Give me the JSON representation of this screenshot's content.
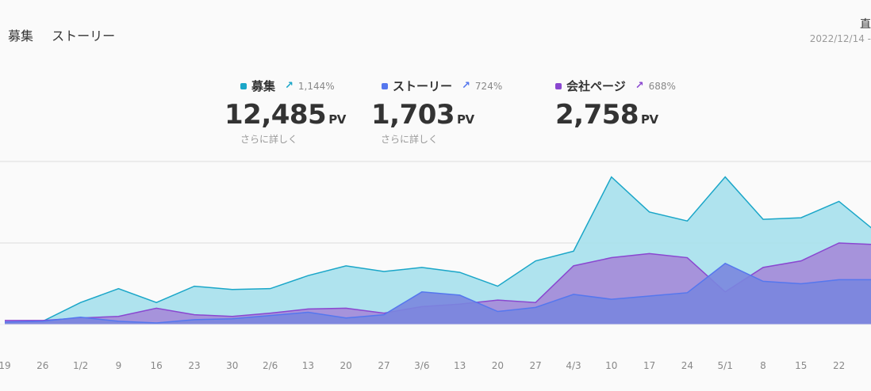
{
  "header": {
    "tabs": [
      "募集",
      "ストーリー"
    ],
    "corner_title": "直",
    "date_range": "2022/12/14 -"
  },
  "metrics": [
    {
      "name": "募集",
      "pct": "1,144%",
      "value": "12,485",
      "unit": "PV",
      "more": "さらに詳しく",
      "color": "#1aa6c8"
    },
    {
      "name": "ストーリー",
      "pct": "724%",
      "value": "1,703",
      "unit": "PV",
      "more": "さらに詳しく",
      "color": "#5577ee"
    },
    {
      "name": "会社ページ",
      "pct": "688%",
      "value": "2,758",
      "unit": "PV",
      "more": "",
      "color": "#8a47d0"
    }
  ],
  "chart_data": {
    "type": "area",
    "x": [
      "19",
      "26",
      "1/2",
      "9",
      "16",
      "23",
      "30",
      "2/6",
      "13",
      "20",
      "27",
      "3/6",
      "13",
      "20",
      "27",
      "4/3",
      "10",
      "17",
      "24",
      "5/1",
      "8",
      "15",
      "22",
      ""
    ],
    "ylim": [
      0,
      2000
    ],
    "grid": true,
    "series": [
      {
        "name": "募集",
        "color": "#1aa6c8",
        "fill": "#a6e0ec",
        "values": [
          20,
          40,
          270,
          440,
          270,
          470,
          430,
          440,
          600,
          720,
          650,
          700,
          640,
          470,
          780,
          900,
          1810,
          1380,
          1270,
          1810,
          1290,
          1310,
          1510,
          1130
        ]
      },
      {
        "name": "会社ページ",
        "color": "#8a47d0",
        "fill": "#a58ad8",
        "values": [
          50,
          50,
          80,
          100,
          200,
          120,
          100,
          140,
          190,
          200,
          140,
          220,
          250,
          300,
          270,
          720,
          820,
          870,
          820,
          400,
          700,
          780,
          1000,
          980
        ]
      },
      {
        "name": "ストーリー",
        "color": "#5577ee",
        "fill": "#7a86de",
        "values": [
          30,
          40,
          90,
          40,
          20,
          60,
          70,
          110,
          150,
          80,
          120,
          400,
          360,
          160,
          210,
          370,
          310,
          350,
          390,
          750,
          530,
          500,
          550,
          550
        ]
      }
    ]
  }
}
